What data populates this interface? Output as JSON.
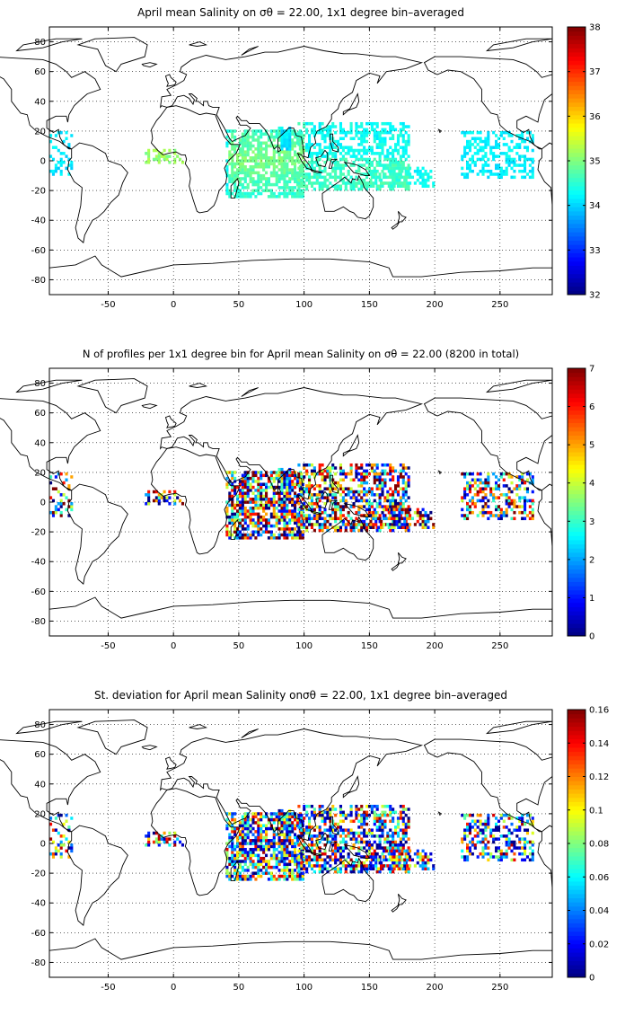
{
  "panels": [
    {
      "title": "April mean Salinity on σθ = 22.00, 1x1 degree bin–averaged",
      "colorbar": {
        "min": 32,
        "max": 38,
        "ticks": [
          "32",
          "33",
          "34",
          "35",
          "36",
          "37",
          "38"
        ]
      },
      "field": "salinity"
    },
    {
      "title": "N of profiles per 1x1 degree bin for April mean Salinity on σθ = 22.00 (8200 in total)",
      "colorbar": {
        "min": 0,
        "max": 7,
        "ticks": [
          "0",
          "1",
          "2",
          "3",
          "4",
          "5",
          "6",
          "7"
        ]
      },
      "field": "count"
    },
    {
      "title": "St. deviation for April mean Salinity onσθ = 22.00, 1x1 degree bin–averaged",
      "colorbar": {
        "min": 0,
        "max": 0.16,
        "ticks": [
          "0",
          "0.02",
          "0.04",
          "0.06",
          "0.08",
          "0.1",
          "0.12",
          "0.14",
          "0.16"
        ]
      },
      "field": "std"
    }
  ],
  "axes": {
    "x_range": [
      -95,
      290
    ],
    "y_range": [
      -90,
      90
    ],
    "x_ticks": [
      "-50",
      "0",
      "50",
      "100",
      "150",
      "200",
      "250"
    ],
    "y_ticks": [
      "80",
      "60",
      "40",
      "20",
      "0",
      "-20",
      "-40",
      "-60",
      "-80"
    ],
    "grid": true,
    "colormap": "jet"
  }
}
